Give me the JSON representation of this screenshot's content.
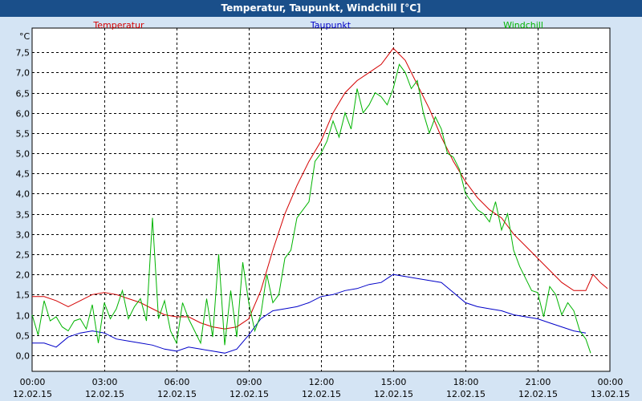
{
  "window": {
    "title": "Temperatur, Taupunkt, Windchill [°C]"
  },
  "chart_data": {
    "type": "line",
    "title": "Temperatur, Taupunkt, Windchill [°C]",
    "ylabel": "°C",
    "ylim": [
      -0.4,
      8.1
    ],
    "yticks": [
      {
        "v": 0.0,
        "label": "0,0"
      },
      {
        "v": 0.5,
        "label": "0,5"
      },
      {
        "v": 1.0,
        "label": "1,0"
      },
      {
        "v": 1.5,
        "label": "1,5"
      },
      {
        "v": 2.0,
        "label": "2,0"
      },
      {
        "v": 2.5,
        "label": "2,5"
      },
      {
        "v": 3.0,
        "label": "3,0"
      },
      {
        "v": 3.5,
        "label": "3,5"
      },
      {
        "v": 4.0,
        "label": "4,0"
      },
      {
        "v": 4.5,
        "label": "4,5"
      },
      {
        "v": 5.0,
        "label": "5,0"
      },
      {
        "v": 5.5,
        "label": "5,5"
      },
      {
        "v": 6.0,
        "label": "6,0"
      },
      {
        "v": 6.5,
        "label": "6,5"
      },
      {
        "v": 7.0,
        "label": "7,0"
      },
      {
        "v": 7.5,
        "label": "7,5"
      }
    ],
    "xlim": [
      0,
      24
    ],
    "xticks": [
      {
        "v": 0,
        "time": "00:00",
        "date": "12.02.15"
      },
      {
        "v": 3,
        "time": "03:00",
        "date": "12.02.15"
      },
      {
        "v": 6,
        "time": "06:00",
        "date": "12.02.15"
      },
      {
        "v": 9,
        "time": "09:00",
        "date": "12.02.15"
      },
      {
        "v": 12,
        "time": "12:00",
        "date": "12.02.15"
      },
      {
        "v": 15,
        "time": "15:00",
        "date": "12.02.15"
      },
      {
        "v": 18,
        "time": "18:00",
        "date": "12.02.15"
      },
      {
        "v": 21,
        "time": "21:00",
        "date": "12.02.15"
      },
      {
        "v": 24,
        "time": "00:00",
        "date": "13.02.15"
      }
    ],
    "grid": true,
    "legend_placement": "top",
    "series": [
      {
        "name": "Temperatur",
        "color": "#d40000",
        "x": [
          0,
          0.5,
          1,
          1.5,
          2,
          2.5,
          3,
          3.5,
          4,
          4.5,
          5,
          5.5,
          6,
          6.5,
          7,
          7.5,
          8,
          8.5,
          9,
          9.5,
          10,
          10.5,
          11,
          11.5,
          12,
          12.5,
          13,
          13.5,
          14,
          14.5,
          15,
          15.5,
          16,
          16.5,
          17,
          17.5,
          18,
          18.5,
          19,
          19.5,
          20,
          20.5,
          21,
          21.5,
          22,
          22.5,
          23,
          23.3,
          23.6,
          23.9
        ],
        "y": [
          1.45,
          1.45,
          1.35,
          1.2,
          1.35,
          1.5,
          1.55,
          1.5,
          1.4,
          1.3,
          1.15,
          1.0,
          0.95,
          0.95,
          0.8,
          0.7,
          0.65,
          0.7,
          0.9,
          1.6,
          2.6,
          3.5,
          4.2,
          4.8,
          5.3,
          6.0,
          6.5,
          6.8,
          7.0,
          7.2,
          7.6,
          7.3,
          6.7,
          6.1,
          5.4,
          4.8,
          4.3,
          3.9,
          3.6,
          3.4,
          3.0,
          2.7,
          2.4,
          2.1,
          1.8,
          1.6,
          1.6,
          2.0,
          1.8,
          1.65
        ]
      },
      {
        "name": "Taupunkt",
        "color": "#0000c8",
        "x": [
          0,
          0.5,
          1,
          1.5,
          2,
          2.5,
          3,
          3.5,
          4,
          4.5,
          5,
          5.5,
          6,
          6.5,
          7,
          7.5,
          8,
          8.5,
          9,
          9.5,
          10,
          10.5,
          11,
          11.5,
          12,
          12.5,
          13,
          13.5,
          14,
          14.5,
          15,
          15.5,
          16,
          16.5,
          17,
          17.5,
          18,
          18.5,
          19,
          19.5,
          20,
          20.5,
          21,
          21.5,
          22,
          22.5,
          23
        ],
        "y": [
          0.3,
          0.3,
          0.2,
          0.45,
          0.55,
          0.6,
          0.55,
          0.4,
          0.35,
          0.3,
          0.25,
          0.15,
          0.1,
          0.2,
          0.15,
          0.1,
          0.05,
          0.15,
          0.5,
          0.9,
          1.1,
          1.15,
          1.2,
          1.3,
          1.45,
          1.5,
          1.6,
          1.65,
          1.75,
          1.8,
          2.0,
          1.95,
          1.9,
          1.85,
          1.8,
          1.55,
          1.3,
          1.2,
          1.15,
          1.1,
          1.0,
          0.95,
          0.9,
          0.8,
          0.7,
          0.6,
          0.55
        ]
      },
      {
        "name": "Windchill",
        "color": "#00b400",
        "x": [
          0,
          0.25,
          0.5,
          0.75,
          1,
          1.25,
          1.5,
          1.75,
          2,
          2.25,
          2.5,
          2.75,
          3,
          3.25,
          3.5,
          3.75,
          4,
          4.25,
          4.5,
          4.75,
          5,
          5.25,
          5.5,
          5.75,
          6,
          6.25,
          6.5,
          6.75,
          7,
          7.25,
          7.5,
          7.75,
          8,
          8.25,
          8.5,
          8.75,
          9,
          9.25,
          9.5,
          9.75,
          10,
          10.25,
          10.5,
          10.75,
          11,
          11.25,
          11.5,
          11.75,
          12,
          12.25,
          12.5,
          12.75,
          13,
          13.25,
          13.5,
          13.75,
          14,
          14.25,
          14.5,
          14.75,
          15,
          15.25,
          15.5,
          15.75,
          16,
          16.25,
          16.5,
          16.75,
          17,
          17.25,
          17.5,
          17.75,
          18,
          18.25,
          18.5,
          18.75,
          19,
          19.25,
          19.5,
          19.75,
          20,
          20.25,
          20.5,
          20.75,
          21,
          21.25,
          21.5,
          21.75,
          22,
          22.25,
          22.5,
          22.75,
          23,
          23.2
        ],
        "y": [
          1.0,
          0.5,
          1.35,
          0.85,
          0.95,
          0.7,
          0.6,
          0.85,
          0.9,
          0.65,
          1.25,
          0.3,
          1.3,
          0.9,
          1.15,
          1.6,
          0.9,
          1.2,
          1.4,
          0.85,
          3.4,
          0.9,
          1.35,
          0.6,
          0.3,
          1.3,
          0.9,
          0.6,
          0.3,
          1.4,
          0.45,
          2.5,
          0.25,
          1.6,
          0.45,
          2.3,
          1.3,
          0.6,
          1.0,
          2.0,
          1.3,
          1.5,
          2.4,
          2.6,
          3.4,
          3.6,
          3.8,
          4.8,
          5.0,
          5.3,
          5.8,
          5.4,
          6.0,
          5.6,
          6.6,
          6.0,
          6.2,
          6.5,
          6.4,
          6.2,
          6.6,
          7.2,
          7.0,
          6.6,
          6.8,
          6.0,
          5.5,
          5.9,
          5.6,
          5.0,
          4.9,
          4.6,
          4.0,
          3.8,
          3.6,
          3.5,
          3.3,
          3.8,
          3.1,
          3.5,
          2.6,
          2.2,
          1.9,
          1.6,
          1.55,
          0.95,
          1.7,
          1.5,
          1.0,
          1.3,
          1.1,
          0.6,
          0.4,
          0.05
        ]
      }
    ]
  }
}
